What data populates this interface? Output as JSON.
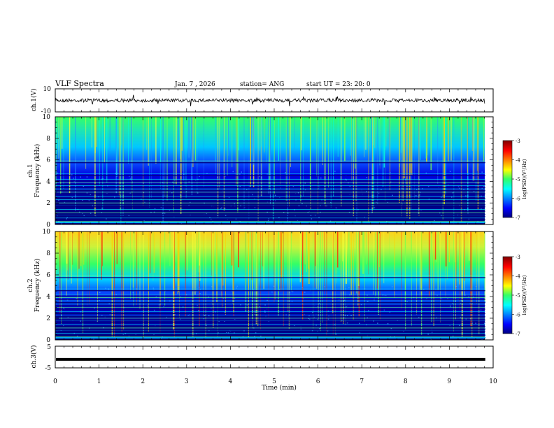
{
  "header": {
    "title": "VLF Spectra",
    "date": "Jan.  7  , 2026",
    "station": "station= ANG",
    "start": "start  UT  =    23: 20: 0"
  },
  "chart_data": [
    {
      "type": "line",
      "name": "ch1-waveform",
      "ylabel": "ch.1(V)",
      "ylim": [
        -10,
        10
      ],
      "yticks": [
        "10",
        "-10"
      ],
      "baseline": 0
    },
    {
      "type": "heatmap",
      "name": "ch1-spectrogram",
      "ylabel_lines": [
        "ch.1",
        "Frequency  (kHz)"
      ],
      "ylim": [
        0,
        10
      ],
      "yticks": [
        "0",
        "2",
        "4",
        "6",
        "8",
        "10"
      ],
      "colorbar": {
        "label": "log(PSD)(V²/Hz)",
        "range": [
          -7,
          -3
        ],
        "ticks": [
          "-3",
          "-4",
          "-5",
          "-6",
          "-7"
        ]
      },
      "hum_lines_khz": [
        0.3,
        0.6,
        0.9,
        1.1,
        1.4,
        1.8,
        2.0,
        2.3,
        2.6,
        3.0,
        3.3,
        3.6,
        3.9,
        4.2,
        4.7,
        5.9
      ]
    },
    {
      "type": "heatmap",
      "name": "ch2-spectrogram",
      "ylabel_lines": [
        "ch.2",
        "Frequency  (kHz)"
      ],
      "ylim": [
        0,
        10
      ],
      "yticks": [
        "0",
        "2",
        "4",
        "6",
        "8",
        "10"
      ],
      "colorbar": {
        "label": "log(PSD)(V²/Hz)",
        "range": [
          -7,
          -3
        ],
        "ticks": [
          "-3",
          "-4",
          "-5",
          "-6",
          "-7"
        ]
      },
      "hum_lines_khz": [
        0.3,
        0.6,
        0.9,
        1.1,
        1.4,
        1.8,
        2.0,
        2.3,
        2.6,
        3.0,
        3.3,
        3.6,
        3.9,
        4.2,
        4.7,
        5.9
      ]
    },
    {
      "type": "line",
      "name": "ch3-waveform",
      "ylabel": "ch.3(V)",
      "ylim": [
        -5,
        5
      ],
      "yticks": [
        "5",
        "-5"
      ],
      "baseline": -1.1
    }
  ],
  "xaxis": {
    "label": "Time  (min)",
    "xlim": [
      0,
      10
    ],
    "ticks": [
      "0",
      "1",
      "2",
      "3",
      "4",
      "5",
      "6",
      "7",
      "8",
      "9",
      "10"
    ],
    "data_end": 9.82
  }
}
